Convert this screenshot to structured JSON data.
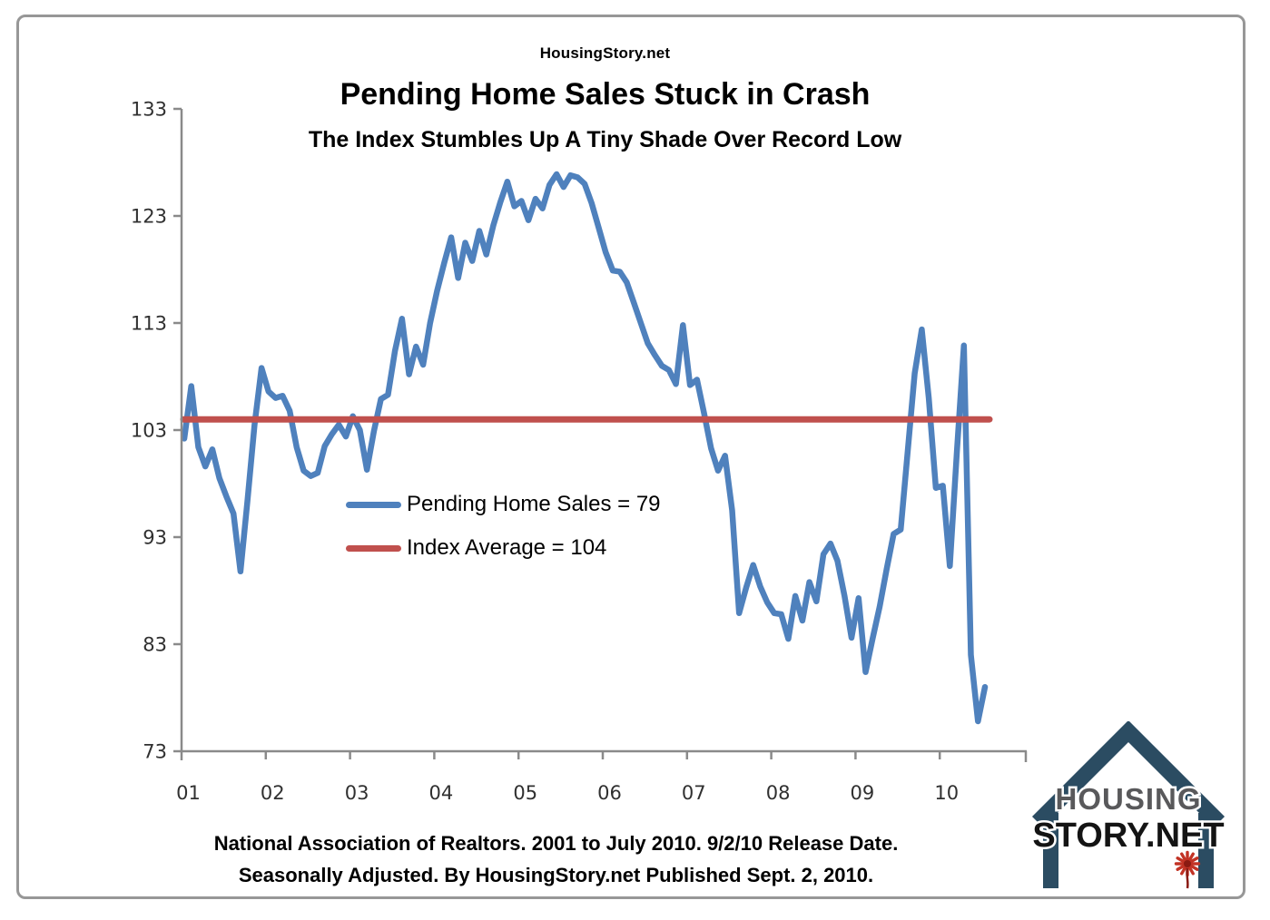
{
  "site_title": "HousingStory.net",
  "title": "Pending Home Sales Stuck in Crash",
  "subtitle": "The Index Stumbles Up A Tiny Shade Over Record Low",
  "legend": {
    "pending_home_sales": "Pending Home Sales = 79",
    "index_average": "Index Average = 104"
  },
  "footer": {
    "line1": "National Association of Realtors. 2001 to July 2010. 9/2/10 Release Date.",
    "line2": "Seasonally Adjusted. By HousingStory.net Published Sept. 2, 2010."
  },
  "logo": {
    "line1": "HOUSING",
    "line2": "STORY.NET"
  },
  "colors": {
    "series_blue": "#4f81bd",
    "average_red": "#c0504d",
    "axis_gray": "#8a8a8a",
    "tick_label": "#303030",
    "logo_house": "#2b4c62",
    "logo_text_gray": "#59595b",
    "logo_text_black": "#141414",
    "logo_flower": "#c23325",
    "logo_flower_center": "#8a1a12"
  },
  "chart_data": {
    "type": "line",
    "title": "Pending Home Sales Stuck in Crash",
    "subtitle": "The Index Stumbles Up A Tiny Shade Over Record Low",
    "xlabel": "",
    "ylabel": "",
    "ylim": [
      73,
      133
    ],
    "y_ticks": [
      133,
      123,
      113,
      103,
      93,
      83,
      73
    ],
    "x_tick_labels": [
      "01",
      "02",
      "03",
      "04",
      "05",
      "06",
      "07",
      "08",
      "09",
      "10"
    ],
    "frequency": "monthly",
    "range": "January 2001 to July 2010",
    "grid": false,
    "legend_position": "inside-middle-left",
    "series": [
      {
        "name": "Pending Home Sales",
        "latest_value": 79,
        "color": "#4f81bd",
        "start": "2001-01",
        "values": [
          102.2,
          107.1,
          101.4,
          99.6,
          101.2,
          98.5,
          96.8,
          95.2,
          89.8,
          96.4,
          103.5,
          108.8,
          106.6,
          106.0,
          106.2,
          104.8,
          101.4,
          99.2,
          98.7,
          99.0,
          101.5,
          102.6,
          103.5,
          102.4,
          104.3,
          103.0,
          99.3,
          102.9,
          105.9,
          106.3,
          110.4,
          113.4,
          108.2,
          110.8,
          109.1,
          113.0,
          116.0,
          118.6,
          121.0,
          117.2,
          120.5,
          118.8,
          121.6,
          119.4,
          122.1,
          124.3,
          126.2,
          123.9,
          124.4,
          122.6,
          124.6,
          123.7,
          125.9,
          126.9,
          125.7,
          126.8,
          126.6,
          126.0,
          124.2,
          121.9,
          119.6,
          117.9,
          117.8,
          116.8,
          114.9,
          113.0,
          111.1,
          110.0,
          109.0,
          108.6,
          107.3,
          112.8,
          107.2,
          107.7,
          104.6,
          101.3,
          99.2,
          100.6,
          95.5,
          85.9,
          88.3,
          90.4,
          88.4,
          86.9,
          85.9,
          85.8,
          83.5,
          87.5,
          85.2,
          88.8,
          87.0,
          91.4,
          92.4,
          90.8,
          87.5,
          83.6,
          87.3,
          80.4,
          83.5,
          86.5,
          90.0,
          93.3,
          93.7,
          101.0,
          108.3,
          112.4,
          106.0,
          97.6,
          97.8,
          90.3,
          101.0,
          110.9,
          82.0,
          75.8,
          79.0
        ]
      },
      {
        "name": "Index Average",
        "value": 104,
        "color": "#c0504d"
      }
    ]
  }
}
